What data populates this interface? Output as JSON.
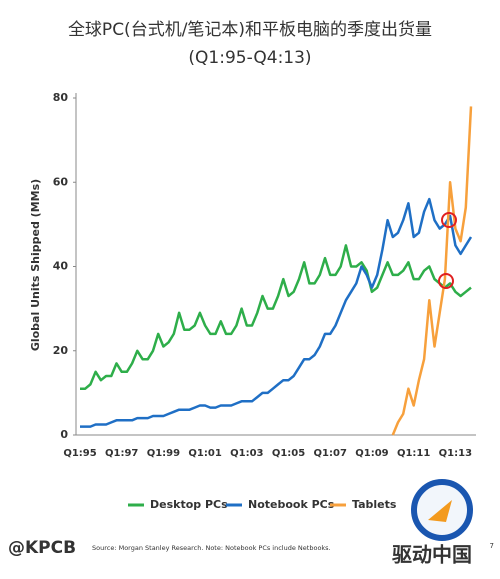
{
  "chart_data": {
    "type": "line",
    "title": "全球PC(台式机/笔记本)和平板电脑的季度出货量",
    "subtitle": "(Q1:95-Q4:13)",
    "y_label": "Global Units Shipped (MMs)",
    "categories": [
      "Q1:95",
      null,
      null,
      null,
      null,
      null,
      null,
      null,
      "Q1:97",
      null,
      null,
      null,
      null,
      null,
      null,
      null,
      "Q1:99",
      null,
      null,
      null,
      null,
      null,
      null,
      null,
      "Q1:01",
      null,
      null,
      null,
      null,
      null,
      null,
      null,
      "Q1:03",
      null,
      null,
      null,
      null,
      null,
      null,
      null,
      "Q1:05",
      null,
      null,
      null,
      null,
      null,
      null,
      null,
      "Q1:07",
      null,
      null,
      null,
      null,
      null,
      null,
      null,
      "Q1:09",
      null,
      null,
      null,
      null,
      null,
      null,
      null,
      "Q1:11",
      null,
      null,
      null,
      null,
      null,
      null,
      null,
      "Q1:13",
      null,
      null,
      null
    ],
    "series": [
      {
        "name": "Desktop PCs",
        "color": "#2eae4a",
        "values": [
          11,
          11,
          12,
          15,
          13,
          14,
          14,
          17,
          15,
          15,
          17,
          20,
          18,
          18,
          20,
          24,
          21,
          22,
          24,
          29,
          25,
          25,
          26,
          29,
          26,
          24,
          24,
          27,
          24,
          24,
          26,
          30,
          26,
          26,
          29,
          33,
          30,
          30,
          33,
          37,
          33,
          34,
          37,
          41,
          36,
          36,
          38,
          42,
          38,
          38,
          40,
          45,
          40,
          40,
          41,
          39,
          34,
          35,
          38,
          41,
          38,
          38,
          39,
          41,
          37,
          37,
          39,
          40,
          37,
          36,
          35,
          36,
          34,
          33,
          34,
          35
        ]
      },
      {
        "name": "Notebook PCs",
        "color": "#1f6fc5",
        "values": [
          2,
          2,
          2,
          2.5,
          2.5,
          2.5,
          3,
          3.5,
          3.5,
          3.5,
          3.5,
          4,
          4,
          4,
          4.5,
          4.5,
          4.5,
          5,
          5.5,
          6,
          6,
          6,
          6.5,
          7,
          7,
          6.5,
          6.5,
          7,
          7,
          7,
          7.5,
          8,
          8,
          8,
          9,
          10,
          10,
          11,
          12,
          13,
          13,
          14,
          16,
          18,
          18,
          19,
          21,
          24,
          24,
          26,
          29,
          32,
          34,
          36,
          40,
          38,
          35,
          38,
          44,
          51,
          47,
          48,
          51,
          55,
          47,
          48,
          53,
          56,
          51,
          49,
          50,
          52,
          45,
          43,
          45,
          47
        ]
      },
      {
        "name": "Tablets",
        "color": "#f7a03c",
        "values": [
          null,
          null,
          null,
          null,
          null,
          null,
          null,
          null,
          null,
          null,
          null,
          null,
          null,
          null,
          null,
          null,
          null,
          null,
          null,
          null,
          null,
          null,
          null,
          null,
          null,
          null,
          null,
          null,
          null,
          null,
          null,
          null,
          null,
          null,
          null,
          null,
          null,
          null,
          null,
          null,
          null,
          null,
          null,
          null,
          null,
          null,
          null,
          null,
          null,
          null,
          null,
          null,
          null,
          null,
          null,
          null,
          null,
          null,
          null,
          null,
          0,
          3,
          5,
          11,
          7,
          13,
          18,
          32,
          21,
          29,
          37,
          60,
          49,
          46,
          54,
          78
        ]
      }
    ],
    "ylim": [
      0,
      80
    ],
    "yticks": [
      0,
      20,
      40,
      60,
      80
    ],
    "grid": false,
    "legend": "bottom"
  },
  "footer": {
    "brand": "@KPCB",
    "source": "Source: Morgan Stanley Research. Note: Notebook PCs include Netbooks.",
    "page": "7",
    "watermark": "驱动中国"
  }
}
